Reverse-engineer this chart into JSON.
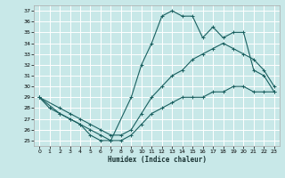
{
  "xlabel": "Humidex (Indice chaleur)",
  "background_color": "#c8e8e8",
  "grid_color": "#b0d4d4",
  "line_color": "#1a6060",
  "xlim": [
    -0.5,
    23.5
  ],
  "ylim": [
    24.5,
    37.5
  ],
  "yticks": [
    25,
    26,
    27,
    28,
    29,
    30,
    31,
    32,
    33,
    34,
    35,
    36,
    37
  ],
  "xticks": [
    0,
    1,
    2,
    3,
    4,
    5,
    6,
    7,
    8,
    9,
    10,
    11,
    12,
    13,
    14,
    15,
    16,
    17,
    18,
    19,
    20,
    21,
    22,
    23
  ],
  "line1_x": [
    0,
    1,
    2,
    3,
    4,
    5,
    6,
    7,
    9,
    10,
    11,
    12,
    13,
    14,
    15,
    16,
    17,
    18,
    19,
    20,
    21,
    22,
    23
  ],
  "line1_y": [
    29.0,
    28.0,
    27.5,
    27.0,
    26.5,
    25.5,
    25.0,
    25.0,
    29.0,
    32.0,
    34.0,
    36.5,
    37.0,
    36.5,
    36.5,
    34.5,
    35.5,
    34.5,
    35.0,
    35.0,
    31.5,
    31.0,
    29.5
  ],
  "line2_x": [
    0,
    2,
    3,
    4,
    5,
    6,
    7,
    8,
    9,
    10,
    11,
    12,
    13,
    14,
    15,
    16,
    17,
    18,
    19,
    20,
    21,
    22,
    23
  ],
  "line2_y": [
    29.0,
    28.0,
    27.5,
    27.0,
    26.5,
    26.0,
    25.5,
    25.5,
    26.0,
    27.5,
    29.0,
    30.0,
    31.0,
    31.5,
    32.5,
    33.0,
    33.5,
    34.0,
    33.5,
    33.0,
    32.5,
    31.5,
    30.0
  ],
  "line3_x": [
    0,
    2,
    3,
    4,
    5,
    6,
    7,
    8,
    9,
    10,
    11,
    12,
    13,
    14,
    15,
    16,
    17,
    18,
    19,
    20,
    21,
    22,
    23
  ],
  "line3_y": [
    29.0,
    27.5,
    27.0,
    26.5,
    26.0,
    25.5,
    25.0,
    25.0,
    25.5,
    26.5,
    27.5,
    28.0,
    28.5,
    29.0,
    29.0,
    29.0,
    29.5,
    29.5,
    30.0,
    30.0,
    29.5,
    29.5,
    29.5
  ]
}
